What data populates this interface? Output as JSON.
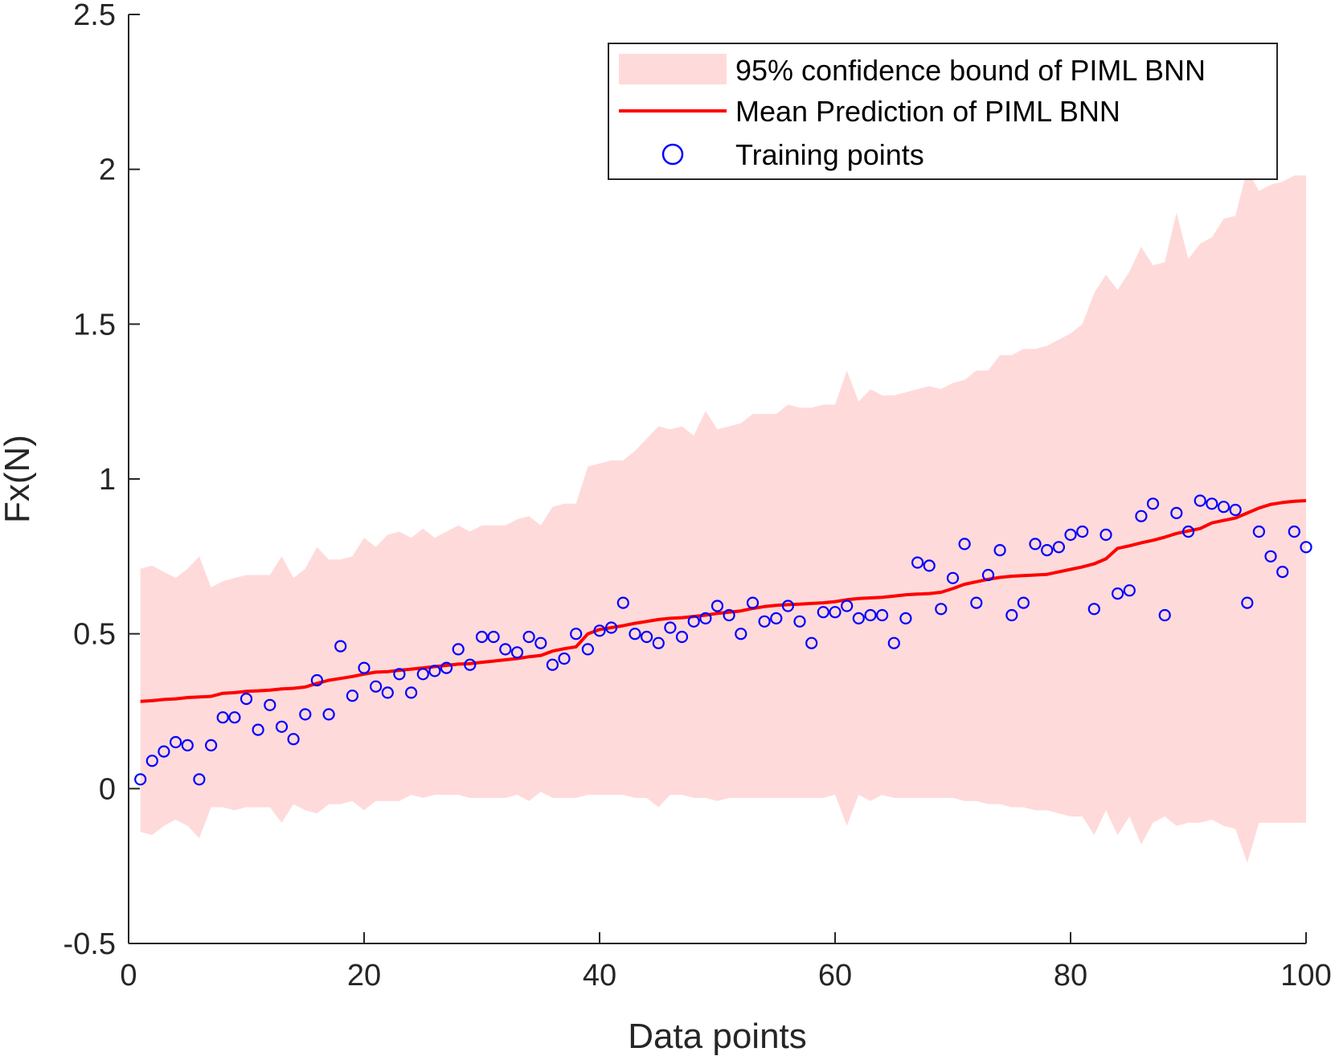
{
  "chart_data": {
    "type": "line",
    "xlabel": "Data points",
    "ylabel": "Fx(N)",
    "xlim": [
      0,
      100
    ],
    "ylim": [
      -0.5,
      2.5
    ],
    "xticks": [
      0,
      20,
      40,
      60,
      80,
      100
    ],
    "xtick_labels": [
      "0",
      "20",
      "40",
      "60",
      "80",
      "100"
    ],
    "yticks": [
      -0.5,
      0,
      0.5,
      1,
      1.5,
      2,
      2.5
    ],
    "ytick_labels": [
      "-0.5",
      "0",
      "0.5",
      "1",
      "1.5",
      "2",
      "2.5"
    ],
    "grid": false,
    "legend_position": "top-right",
    "legend": [
      {
        "key": "band",
        "label": "95% confidence bound of PIML BNN"
      },
      {
        "key": "mean",
        "label": "Mean Prediction of PIML BNN"
      },
      {
        "key": "train",
        "label": "Training points"
      }
    ],
    "colors": {
      "band": "#ffdada",
      "mean": "#ff0000",
      "train": "#0000ff",
      "axis": "#262626"
    },
    "x": [
      1,
      2,
      3,
      4,
      5,
      6,
      7,
      8,
      9,
      10,
      11,
      12,
      13,
      14,
      15,
      16,
      17,
      18,
      19,
      20,
      21,
      22,
      23,
      24,
      25,
      26,
      27,
      28,
      29,
      30,
      31,
      32,
      33,
      34,
      35,
      36,
      37,
      38,
      39,
      40,
      41,
      42,
      43,
      44,
      45,
      46,
      47,
      48,
      49,
      50,
      51,
      52,
      53,
      54,
      55,
      56,
      57,
      58,
      59,
      60,
      61,
      62,
      63,
      64,
      65,
      66,
      67,
      68,
      69,
      70,
      71,
      72,
      73,
      74,
      75,
      76,
      77,
      78,
      79,
      80,
      81,
      82,
      83,
      84,
      85,
      86,
      87,
      88,
      89,
      90,
      91,
      92,
      93,
      94,
      95,
      96,
      97,
      98,
      99,
      100
    ],
    "series": [
      {
        "name": "95% confidence bound of PIML BNN",
        "kind": "band",
        "upper": [
          0.71,
          0.72,
          0.7,
          0.68,
          0.71,
          0.75,
          0.65,
          0.67,
          0.68,
          0.69,
          0.69,
          0.69,
          0.75,
          0.68,
          0.71,
          0.78,
          0.74,
          0.74,
          0.75,
          0.81,
          0.78,
          0.82,
          0.83,
          0.81,
          0.84,
          0.81,
          0.83,
          0.85,
          0.83,
          0.85,
          0.85,
          0.85,
          0.87,
          0.88,
          0.85,
          0.91,
          0.92,
          0.92,
          1.04,
          1.05,
          1.06,
          1.06,
          1.09,
          1.13,
          1.17,
          1.16,
          1.17,
          1.14,
          1.22,
          1.16,
          1.17,
          1.18,
          1.21,
          1.21,
          1.21,
          1.24,
          1.23,
          1.23,
          1.24,
          1.24,
          1.35,
          1.25,
          1.29,
          1.27,
          1.27,
          1.28,
          1.29,
          1.3,
          1.29,
          1.31,
          1.32,
          1.35,
          1.35,
          1.4,
          1.4,
          1.42,
          1.42,
          1.43,
          1.45,
          1.47,
          1.5,
          1.6,
          1.66,
          1.61,
          1.67,
          1.75,
          1.69,
          1.7,
          1.86,
          1.71,
          1.76,
          1.78,
          1.84,
          1.85,
          2.0,
          1.93,
          1.95,
          1.96,
          1.98,
          1.98
        ],
        "lower": [
          -0.14,
          -0.15,
          -0.12,
          -0.1,
          -0.12,
          -0.16,
          -0.06,
          -0.06,
          -0.07,
          -0.06,
          -0.06,
          -0.06,
          -0.11,
          -0.05,
          -0.07,
          -0.08,
          -0.05,
          -0.05,
          -0.04,
          -0.07,
          -0.04,
          -0.04,
          -0.04,
          -0.02,
          -0.03,
          -0.02,
          -0.02,
          -0.02,
          -0.03,
          -0.03,
          -0.03,
          -0.03,
          -0.02,
          -0.04,
          -0.01,
          -0.03,
          -0.03,
          -0.03,
          -0.02,
          -0.02,
          -0.02,
          -0.02,
          -0.03,
          -0.03,
          -0.06,
          -0.02,
          -0.02,
          -0.03,
          -0.03,
          -0.04,
          -0.03,
          -0.03,
          -0.03,
          -0.03,
          -0.03,
          -0.03,
          -0.03,
          -0.03,
          -0.03,
          -0.02,
          -0.12,
          -0.02,
          -0.04,
          -0.02,
          -0.03,
          -0.03,
          -0.03,
          -0.03,
          -0.03,
          -0.03,
          -0.04,
          -0.04,
          -0.05,
          -0.05,
          -0.06,
          -0.06,
          -0.07,
          -0.07,
          -0.08,
          -0.09,
          -0.09,
          -0.15,
          -0.07,
          -0.15,
          -0.09,
          -0.18,
          -0.11,
          -0.09,
          -0.12,
          -0.11,
          -0.11,
          -0.1,
          -0.12,
          -0.13,
          -0.24,
          -0.11,
          -0.11,
          -0.11,
          -0.11,
          -0.11
        ]
      },
      {
        "name": "Mean Prediction of PIML BNN",
        "kind": "line",
        "values": [
          0.282,
          0.284,
          0.288,
          0.29,
          0.294,
          0.296,
          0.298,
          0.308,
          0.31,
          0.314,
          0.316,
          0.318,
          0.322,
          0.324,
          0.328,
          0.34,
          0.35,
          0.356,
          0.362,
          0.37,
          0.376,
          0.378,
          0.382,
          0.386,
          0.39,
          0.394,
          0.398,
          0.402,
          0.404,
          0.408,
          0.412,
          0.416,
          0.42,
          0.426,
          0.43,
          0.444,
          0.452,
          0.458,
          0.5,
          0.514,
          0.52,
          0.526,
          0.534,
          0.54,
          0.546,
          0.55,
          0.552,
          0.556,
          0.56,
          0.566,
          0.57,
          0.574,
          0.582,
          0.588,
          0.592,
          0.594,
          0.596,
          0.598,
          0.6,
          0.604,
          0.61,
          0.614,
          0.616,
          0.618,
          0.622,
          0.626,
          0.628,
          0.63,
          0.634,
          0.646,
          0.66,
          0.668,
          0.676,
          0.682,
          0.686,
          0.688,
          0.69,
          0.692,
          0.7,
          0.708,
          0.716,
          0.726,
          0.742,
          0.776,
          0.784,
          0.794,
          0.802,
          0.812,
          0.824,
          0.832,
          0.84,
          0.858,
          0.866,
          0.874,
          0.89,
          0.906,
          0.918,
          0.924,
          0.928,
          0.93
        ]
      },
      {
        "name": "Training points",
        "kind": "scatter",
        "values": [
          0.03,
          0.09,
          0.12,
          0.15,
          0.14,
          0.03,
          0.14,
          0.23,
          0.23,
          0.29,
          0.19,
          0.27,
          0.2,
          0.16,
          0.24,
          0.35,
          0.24,
          0.46,
          0.3,
          0.39,
          0.33,
          0.31,
          0.37,
          0.31,
          0.37,
          0.38,
          0.39,
          0.45,
          0.4,
          0.49,
          0.49,
          0.45,
          0.44,
          0.49,
          0.47,
          0.4,
          0.42,
          0.5,
          0.45,
          0.51,
          0.52,
          0.6,
          0.5,
          0.49,
          0.47,
          0.52,
          0.49,
          0.54,
          0.55,
          0.59,
          0.56,
          0.5,
          0.6,
          0.54,
          0.55,
          0.59,
          0.54,
          0.47,
          0.57,
          0.57,
          0.59,
          0.55,
          0.56,
          0.56,
          0.47,
          0.55,
          0.73,
          0.72,
          0.58,
          0.68,
          0.79,
          0.6,
          0.69,
          0.77,
          0.56,
          0.6,
          0.79,
          0.77,
          0.78,
          0.82,
          0.83,
          0.58,
          0.82,
          0.63,
          0.64,
          0.88,
          0.92,
          0.56,
          0.89,
          0.83,
          0.93,
          0.92,
          0.91,
          0.9,
          0.6,
          0.83,
          0.75,
          0.7,
          0.83,
          0.78
        ]
      }
    ]
  }
}
